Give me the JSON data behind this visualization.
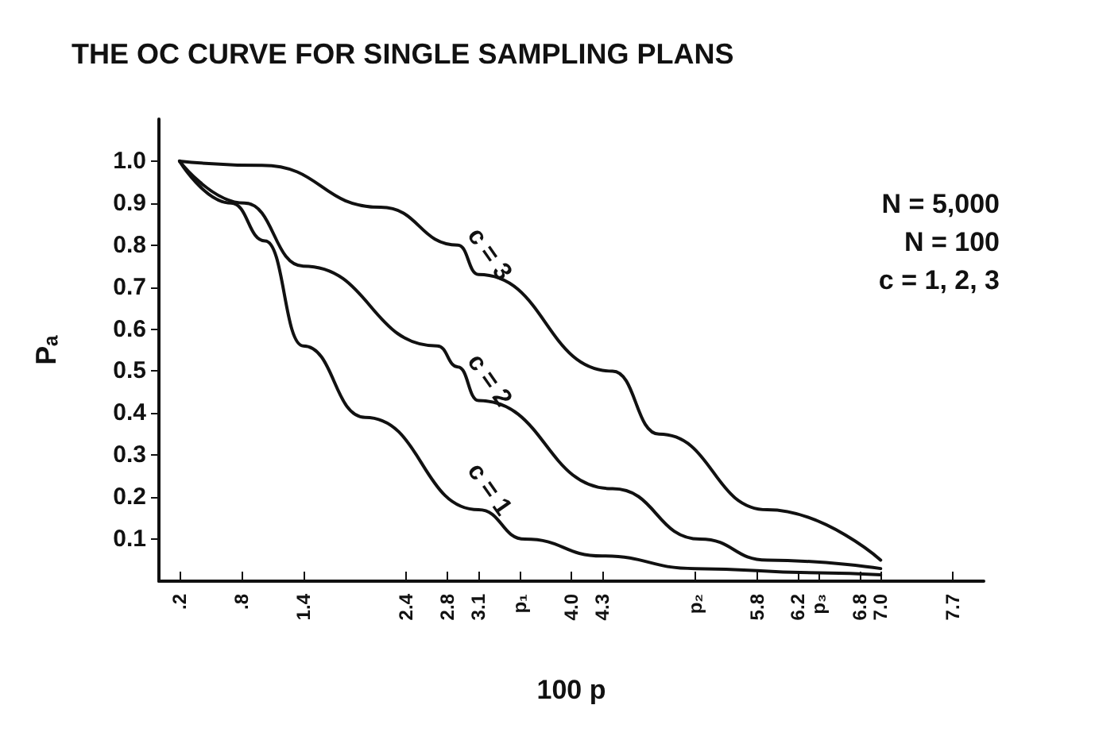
{
  "chart_data": {
    "type": "line",
    "title": "THE OC CURVE FOR SINGLE SAMPLING PLANS",
    "xlabel": "100 p",
    "ylabel": "Pₐ",
    "annotations": [
      "N = 5,000",
      "N = 100",
      "c = 1, 2, 3"
    ],
    "series": [
      {
        "name": "c = 1",
        "color": "#111111",
        "x": [
          0.2,
          0.7,
          1.03,
          1.4,
          2.0,
          3.1,
          3.55,
          4.3,
          5.2,
          6.4,
          7.0
        ],
        "values": [
          1.0,
          0.9,
          0.81,
          0.56,
          0.39,
          0.17,
          0.1,
          0.06,
          0.03,
          0.02,
          0.015
        ]
      },
      {
        "name": "c = 2",
        "color": "#111111",
        "x": [
          0.2,
          0.83,
          1.4,
          2.7,
          2.9,
          3.1,
          4.4,
          5.25,
          5.9,
          7.0
        ],
        "values": [
          1.0,
          0.9,
          0.75,
          0.56,
          0.51,
          0.43,
          0.22,
          0.1,
          0.05,
          0.03
        ]
      },
      {
        "name": "c = 3",
        "color": "#111111",
        "x": [
          0.2,
          1.0,
          2.15,
          2.9,
          3.1,
          4.4,
          4.85,
          5.9,
          7.0
        ],
        "values": [
          1.0,
          0.99,
          0.89,
          0.8,
          0.73,
          0.5,
          0.35,
          0.17,
          0.05
        ]
      }
    ],
    "xlim": [
      0,
      8
    ],
    "xticks": [
      {
        "value": 0.2,
        "label": ".2"
      },
      {
        "value": 0.8,
        "label": ".8"
      },
      1.4,
      2.4,
      2.8,
      3.1,
      {
        "value": 3.5,
        "label": "p₁"
      },
      {
        "value": 4.0,
        "label": "4.0"
      },
      4.3,
      {
        "value": 5.2,
        "label": "p₂"
      },
      5.8,
      6.2,
      {
        "value": 6.4,
        "label": "p₃"
      },
      6.8,
      {
        "value": 7.0,
        "label": "7.0"
      },
      7.7
    ],
    "ylim": [
      0,
      1.1
    ],
    "yticks": [
      0.1,
      0.2,
      0.3,
      0.4,
      0.5,
      0.6,
      0.7,
      0.8,
      0.9,
      {
        "value": 1.0,
        "label": "1.0"
      }
    ],
    "grid": false,
    "legend": false,
    "marker": "none",
    "line_style": "solid"
  }
}
